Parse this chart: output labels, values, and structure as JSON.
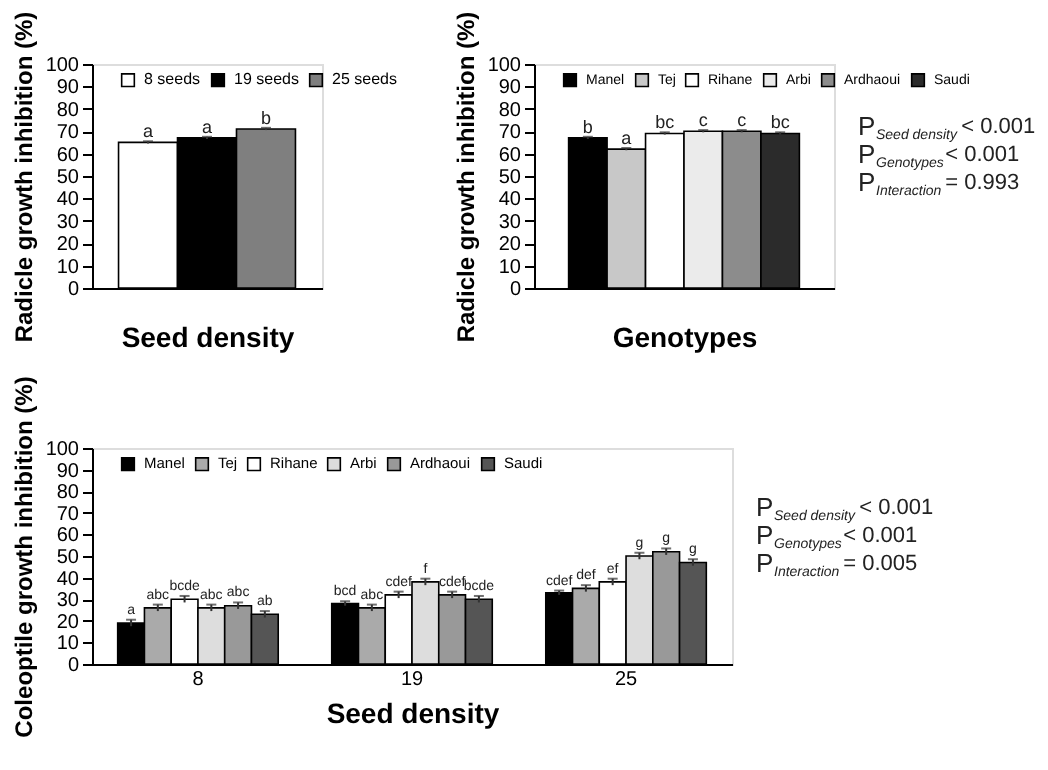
{
  "chart_data": [
    {
      "type": "bar",
      "ylabel": "Radicle growth inhibition (%)",
      "xlabel": "Seed density",
      "categories": [
        null
      ],
      "ylim": [
        0,
        100
      ],
      "yticks": [
        0,
        10,
        20,
        30,
        40,
        50,
        60,
        70,
        80,
        90,
        100
      ],
      "legend": "top",
      "series": [
        {
          "name": "8 seeds",
          "color": "#ffffff",
          "values": [
            65
          ],
          "errors": [
            0.5
          ],
          "value_labels": [
            "a"
          ]
        },
        {
          "name": "19 seeds",
          "color": "#000000",
          "values": [
            67
          ],
          "errors": [
            0.5
          ],
          "value_labels": [
            "a"
          ]
        },
        {
          "name": "25 seeds",
          "color": "#7f7f7f",
          "values": [
            71
          ],
          "errors": [
            0.5
          ],
          "value_labels": [
            "b"
          ]
        }
      ]
    },
    {
      "type": "bar",
      "ylabel": "Radicle growth inhibition (%)",
      "xlabel": "Genotypes",
      "categories": [
        null
      ],
      "ylim": [
        0,
        100
      ],
      "yticks": [
        0,
        10,
        20,
        30,
        40,
        50,
        60,
        70,
        80,
        90,
        100
      ],
      "legend": "top",
      "annotations": [
        "P$_{Seed density}$ < 0.001",
        "P$_{Genotypes}$< 0.001",
        "P$_{Interaction}$= 0.993"
      ],
      "series": [
        {
          "name": "Manel",
          "color": "#000000",
          "values": [
            67
          ],
          "errors": [
            0.5
          ],
          "value_labels": [
            "b"
          ]
        },
        {
          "name": "Tej",
          "color": "#c8c8c8",
          "values": [
            62
          ],
          "errors": [
            0.5
          ],
          "value_labels": [
            "a"
          ]
        },
        {
          "name": "Rihane",
          "color": "#ffffff",
          "values": [
            69
          ],
          "errors": [
            0.5
          ],
          "value_labels": [
            "bc"
          ]
        },
        {
          "name": "Arbi",
          "color": "#ebebeb",
          "values": [
            70
          ],
          "errors": [
            0.5
          ],
          "value_labels": [
            "c"
          ]
        },
        {
          "name": "Ardhaoui",
          "color": "#8c8c8c",
          "values": [
            70
          ],
          "errors": [
            0.5
          ],
          "value_labels": [
            "c"
          ]
        },
        {
          "name": "Saudi",
          "color": "#2b2b2b",
          "values": [
            69
          ],
          "errors": [
            0.5
          ],
          "value_labels": [
            "bc"
          ]
        }
      ]
    },
    {
      "type": "bar",
      "ylabel": "Coleoptile growth inhibition (%)",
      "xlabel": "Seed density",
      "categories": [
        "8",
        "19",
        "25"
      ],
      "ylim": [
        0,
        100
      ],
      "yticks": [
        0,
        10,
        20,
        30,
        40,
        50,
        60,
        70,
        80,
        90,
        100
      ],
      "legend": "top",
      "annotations": [
        "P$_{Seed density}$ < 0.001",
        "P$_{Genotypes}$< 0.001",
        "P$_{Interaction}$= 0.005"
      ],
      "series": [
        {
          "name": "Manel",
          "color": "#000000",
          "values": [
            19,
            28,
            33
          ],
          "errors": [
            1.5,
            1,
            1
          ],
          "value_labels": [
            "a",
            "bcd",
            "cdef"
          ]
        },
        {
          "name": "Tej",
          "color": "#aaaaaa",
          "values": [
            26,
            26,
            35
          ],
          "errors": [
            1.5,
            1.5,
            1.5
          ],
          "value_labels": [
            "abc",
            "abc",
            "def"
          ]
        },
        {
          "name": "Rihane",
          "color": "#ffffff",
          "values": [
            30,
            32,
            38
          ],
          "errors": [
            1.5,
            1.5,
            1.5
          ],
          "value_labels": [
            "bcde",
            "cdef",
            "ef"
          ]
        },
        {
          "name": "Arbi",
          "color": "#dddddd",
          "values": [
            26,
            38,
            50
          ],
          "errors": [
            1.5,
            1.5,
            1.5
          ],
          "value_labels": [
            "abc",
            "f",
            "g"
          ]
        },
        {
          "name": "Ardhaoui",
          "color": "#999999",
          "values": [
            27,
            32,
            52
          ],
          "errors": [
            1.5,
            1.5,
            1.5
          ],
          "value_labels": [
            "abc",
            "cdef",
            "g"
          ]
        },
        {
          "name": "Saudi",
          "color": "#555555",
          "values": [
            23,
            30,
            47
          ],
          "errors": [
            1.5,
            1.5,
            1.5
          ],
          "value_labels": [
            "ab",
            "bcde",
            "g"
          ]
        }
      ]
    }
  ]
}
